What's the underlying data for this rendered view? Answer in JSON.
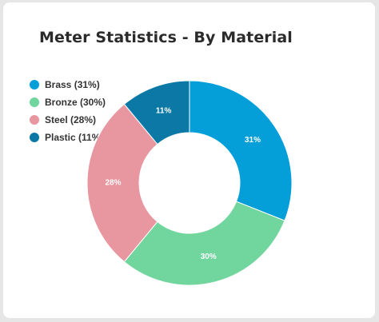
{
  "card": {
    "title": "Meter Statistics - By Material"
  },
  "chart_data": {
    "type": "pie",
    "subtype": "donut",
    "title": "Meter Statistics - By Material",
    "categories": [
      "Brass",
      "Bronze",
      "Steel",
      "Plastic"
    ],
    "values": [
      31,
      30,
      28,
      11
    ],
    "legend_labels": [
      "Brass (31%)",
      "Bronze (30%)",
      "Steel (28%)",
      "Plastic (11%)"
    ],
    "data_labels": [
      "31%",
      "30%",
      "28%",
      "11%"
    ],
    "colors": [
      "#049fd9",
      "#71d59e",
      "#e8969f",
      "#0b78a5"
    ],
    "legend_position": "top-left"
  }
}
